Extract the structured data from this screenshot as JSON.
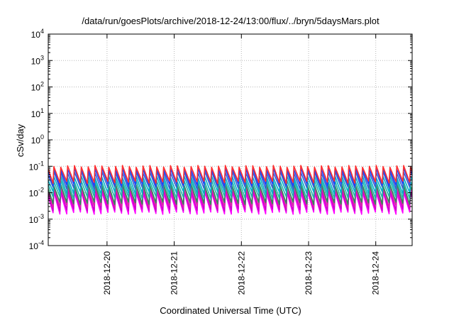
{
  "chart_data": {
    "type": "line",
    "title": "/data/run/goesPlots/archive/2018-12-24/13:00/flux/../bryn/5daysMars.plot",
    "xlabel": "Coordinated Universal Time (UTC)",
    "ylabel": "cSv/day",
    "yscale": "log",
    "ylim_exponents": [
      -4,
      4
    ],
    "y_tick_labels": [
      {
        "base": "10",
        "exp": "-4"
      },
      {
        "base": "10",
        "exp": "-3"
      },
      {
        "base": "10",
        "exp": "-2"
      },
      {
        "base": "10",
        "exp": "-1"
      },
      {
        "base": "10",
        "exp": "0"
      },
      {
        "base": "10",
        "exp": "1"
      },
      {
        "base": "10",
        "exp": "2"
      },
      {
        "base": "10",
        "exp": "3"
      },
      {
        "base": "10",
        "exp": "4"
      }
    ],
    "x_range": [
      "2018-12-19T03:00",
      "2018-12-24T13:00"
    ],
    "x_tick_labels": [
      "2018-12-20",
      "2018-12-21",
      "2018-12-22",
      "2018-12-23",
      "2018-12-24"
    ],
    "x_tick_dates": [
      "2018-12-20T00:00",
      "2018-12-21T00:00",
      "2018-12-22T00:00",
      "2018-12-23T00:00",
      "2018-12-24T00:00"
    ],
    "grid": true,
    "cycle_hours": 2.45,
    "series": [
      {
        "color": "#ff00ff",
        "peak": 0.01,
        "trough": 0.0017
      },
      {
        "color": "#cc00cc",
        "peak": 0.013,
        "trough": 0.0022
      },
      {
        "color": "#dd22aa",
        "peak": 0.016,
        "trough": 0.003
      },
      {
        "color": "#2e8b57",
        "peak": 0.02,
        "trough": 0.004
      },
      {
        "color": "#20b2aa",
        "peak": 0.028,
        "trough": 0.0065
      },
      {
        "color": "#00b0c8",
        "peak": 0.04,
        "trough": 0.01
      },
      {
        "color": "#3a5fcd",
        "peak": 0.06,
        "trough": 0.015
      },
      {
        "color": "#1e40ff",
        "peak": 0.08,
        "trough": 0.02
      },
      {
        "color": "#ff3030",
        "peak": 0.1,
        "trough": 0.025
      }
    ]
  }
}
